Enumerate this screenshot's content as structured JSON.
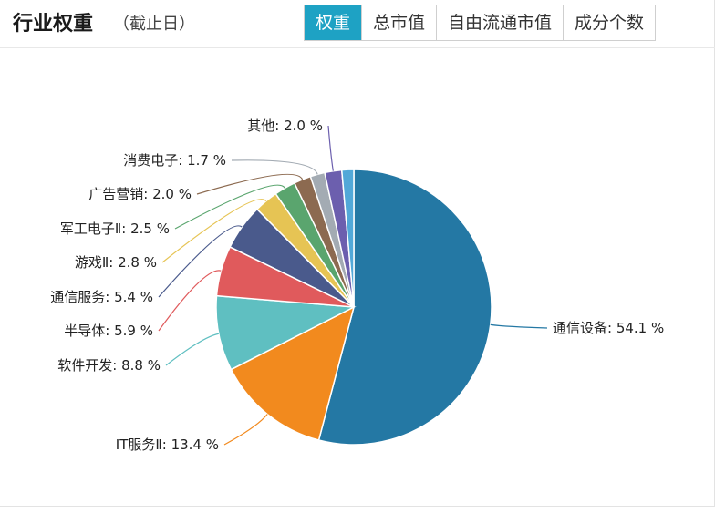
{
  "header": {
    "title": "行业权重",
    "subtitle": "（截止日）",
    "tabs": [
      {
        "label": "权重",
        "active": true
      },
      {
        "label": "总市值",
        "active": false
      },
      {
        "label": "自由流通市值",
        "active": false
      },
      {
        "label": "成分个数",
        "active": false
      }
    ]
  },
  "chart_data": {
    "type": "pie",
    "unit": "%",
    "slices": [
      {
        "name": "通信设备",
        "value": 54.1,
        "label": "通信设备: 54.1 %",
        "color": "#2478a4"
      },
      {
        "name": "IT服务Ⅱ",
        "value": 13.4,
        "label": "IT服务Ⅱ: 13.4 %",
        "color": "#f28a1e"
      },
      {
        "name": "软件开发",
        "value": 8.8,
        "label": "软件开发: 8.8 %",
        "color": "#5fbfc1"
      },
      {
        "name": "半导体",
        "value": 5.9,
        "label": "半导体: 5.9 %",
        "color": "#e05a5c"
      },
      {
        "name": "通信服务",
        "value": 5.4,
        "label": "通信服务: 5.4 %",
        "color": "#4a5a8c"
      },
      {
        "name": "游戏Ⅱ",
        "value": 2.8,
        "label": "游戏Ⅱ: 2.8 %",
        "color": "#e6c454"
      },
      {
        "name": "军工电子Ⅱ",
        "value": 2.5,
        "label": "军工电子Ⅱ: 2.5 %",
        "color": "#5aa56e"
      },
      {
        "name": "广告营销",
        "value": 2.0,
        "label": "广告营销: 2.0 %",
        "color": "#8c6a50"
      },
      {
        "name": "消费电子",
        "value": 1.7,
        "label": "消费电子: 1.7 %",
        "color": "#a3abb3"
      },
      {
        "name": "其他",
        "value": 2.0,
        "label": "其他: 2.0 %",
        "color": "#6c5fae"
      },
      {
        "name": "",
        "value": 1.4,
        "label": "",
        "color": "#52a8d8"
      }
    ]
  }
}
